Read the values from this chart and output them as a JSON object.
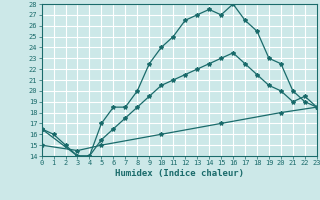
{
  "bg_color": "#cce8e8",
  "grid_color": "#ffffff",
  "line_color": "#1a6b6b",
  "xlabel": "Humidex (Indice chaleur)",
  "xlim": [
    0,
    23
  ],
  "ylim": [
    14,
    28
  ],
  "xticks": [
    0,
    1,
    2,
    3,
    4,
    5,
    6,
    7,
    8,
    9,
    10,
    11,
    12,
    13,
    14,
    15,
    16,
    17,
    18,
    19,
    20,
    21,
    22,
    23
  ],
  "yticks": [
    14,
    15,
    16,
    17,
    18,
    19,
    20,
    21,
    22,
    23,
    24,
    25,
    26,
    27,
    28
  ],
  "curve1_x": [
    0,
    1,
    2,
    3,
    4,
    5,
    6,
    7,
    8,
    9,
    10,
    11,
    12,
    13,
    14,
    15,
    16,
    17,
    18,
    19,
    20,
    21,
    22,
    23
  ],
  "curve1_y": [
    16.5,
    16.0,
    15.0,
    14.0,
    14.0,
    17.0,
    18.5,
    18.5,
    20.0,
    22.5,
    24.0,
    25.0,
    26.5,
    27.0,
    27.5,
    27.0,
    28.0,
    26.5,
    25.5,
    23.0,
    22.5,
    20.0,
    19.0,
    18.5
  ],
  "curve2_x": [
    0,
    3,
    4,
    5,
    6,
    7,
    8,
    9,
    10,
    11,
    12,
    13,
    14,
    15,
    16,
    17,
    18,
    19,
    20,
    21,
    22,
    23
  ],
  "curve2_y": [
    16.5,
    14.0,
    14.0,
    15.5,
    16.5,
    17.5,
    18.5,
    19.5,
    20.5,
    21.0,
    21.5,
    22.0,
    22.5,
    23.0,
    23.5,
    22.5,
    21.5,
    20.5,
    20.0,
    19.0,
    19.5,
    18.5
  ],
  "curve3_x": [
    0,
    3,
    5,
    10,
    15,
    20,
    23
  ],
  "curve3_y": [
    15.0,
    14.5,
    15.0,
    16.0,
    17.0,
    18.0,
    18.5
  ]
}
